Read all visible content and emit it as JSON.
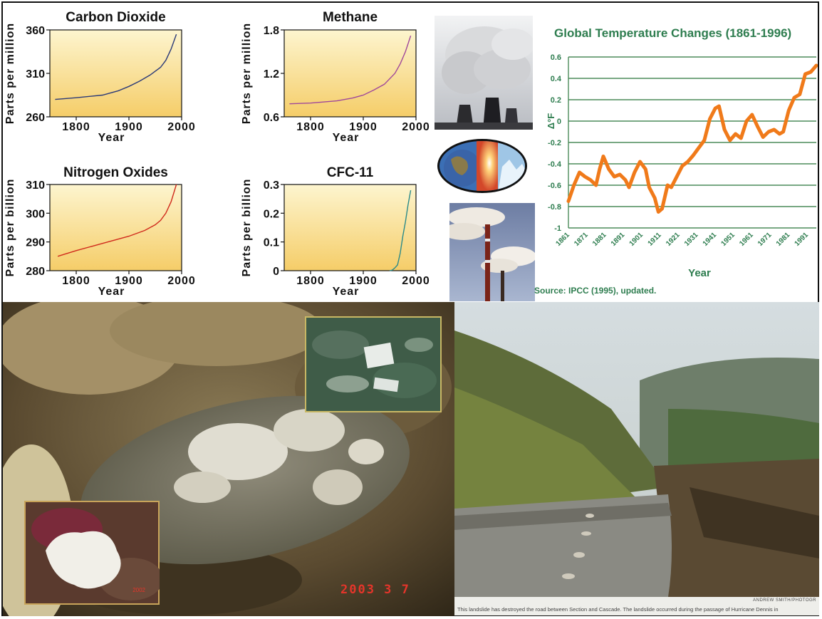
{
  "chart_data": [
    {
      "type": "line",
      "title": "Carbon Dioxide",
      "xlabel": "Year",
      "ylabel": "Parts per million",
      "xlim": [
        1750,
        2000
      ],
      "ylim": [
        260,
        360
      ],
      "xticks": [
        "1800",
        "1900",
        "2000"
      ],
      "yticks": [
        "260",
        "310",
        "360"
      ],
      "x": [
        1760,
        1800,
        1850,
        1880,
        1900,
        1920,
        1940,
        1960,
        1970,
        1980,
        1990
      ],
      "y": [
        280,
        282,
        285,
        290,
        295,
        301,
        308,
        317,
        325,
        338,
        355
      ],
      "line_color": "#2b3a78"
    },
    {
      "type": "line",
      "title": "Methane",
      "xlabel": "Year",
      "ylabel": "Parts per million",
      "xlim": [
        1750,
        2000
      ],
      "ylim": [
        0.6,
        1.8
      ],
      "xticks": [
        "1800",
        "1900",
        "2000"
      ],
      "yticks": [
        "0.6",
        "1.2",
        "1.8"
      ],
      "x": [
        1760,
        1800,
        1850,
        1880,
        1900,
        1920,
        1940,
        1960,
        1970,
        1980,
        1990
      ],
      "y": [
        0.78,
        0.79,
        0.82,
        0.86,
        0.9,
        0.97,
        1.05,
        1.2,
        1.33,
        1.5,
        1.72
      ],
      "line_color": "#a0489a"
    },
    {
      "type": "line",
      "title": "Nitrogen Oxides",
      "xlabel": "Year",
      "ylabel": "Parts per billion",
      "xlim": [
        1750,
        2000
      ],
      "ylim": [
        280,
        310
      ],
      "xticks": [
        "1800",
        "1900",
        "2000"
      ],
      "yticks": [
        "280",
        "290",
        "300",
        "310"
      ],
      "x": [
        1765,
        1800,
        1850,
        1900,
        1930,
        1950,
        1960,
        1970,
        1980,
        1990
      ],
      "y": [
        285,
        287,
        289.5,
        292,
        294,
        296,
        297.5,
        300,
        304,
        310
      ],
      "line_color": "#d02a1c"
    },
    {
      "type": "line",
      "title": "CFC-11",
      "xlabel": "Year",
      "ylabel": "Parts per billion",
      "xlim": [
        1750,
        2000
      ],
      "ylim": [
        0,
        0.3
      ],
      "xticks": [
        "1800",
        "1900",
        "2000"
      ],
      "yticks": [
        "0",
        "0.1",
        "0.2",
        "0.3"
      ],
      "x": [
        1950,
        1955,
        1960,
        1965,
        1970,
        1975,
        1980,
        1985,
        1990
      ],
      "y": [
        0,
        0.002,
        0.01,
        0.02,
        0.06,
        0.12,
        0.17,
        0.23,
        0.28
      ],
      "line_color": "#2a8a8a"
    },
    {
      "type": "line",
      "title": "Global Temperature Changes (1861-1996)",
      "xlabel": "Year",
      "ylabel": "Δ°F",
      "source": "Source: IPCC (1995), updated.",
      "xlim": [
        1861,
        1996
      ],
      "ylim": [
        -1,
        0.6
      ],
      "yticks": [
        "0.6",
        "0.4",
        "0.2",
        "0",
        "-0.2",
        "-0.4",
        "-0.6",
        "-0.8",
        "-1"
      ],
      "xticks": [
        "1861",
        "1871",
        "1881",
        "1891",
        "1901",
        "1911",
        "1921",
        "1931",
        "1941",
        "1951",
        "1961",
        "1971",
        "1981",
        "1991"
      ],
      "grid": true,
      "line_color": "#f07a1a",
      "x": [
        1861,
        1864,
        1867,
        1870,
        1873,
        1876,
        1878,
        1880,
        1883,
        1886,
        1889,
        1892,
        1894,
        1897,
        1900,
        1903,
        1905,
        1908,
        1910,
        1912,
        1915,
        1917,
        1920,
        1923,
        1926,
        1929,
        1932,
        1935,
        1938,
        1941,
        1943,
        1946,
        1949,
        1952,
        1955,
        1958,
        1961,
        1964,
        1967,
        1970,
        1973,
        1976,
        1978,
        1981,
        1984,
        1987,
        1990,
        1993,
        1996
      ],
      "y": [
        -0.75,
        -0.6,
        -0.48,
        -0.52,
        -0.55,
        -0.6,
        -0.45,
        -0.33,
        -0.45,
        -0.52,
        -0.5,
        -0.55,
        -0.62,
        -0.48,
        -0.38,
        -0.45,
        -0.62,
        -0.72,
        -0.85,
        -0.82,
        -0.6,
        -0.62,
        -0.52,
        -0.42,
        -0.38,
        -0.32,
        -0.25,
        -0.18,
        0.02,
        0.12,
        0.14,
        -0.08,
        -0.18,
        -0.12,
        -0.16,
        0.0,
        0.06,
        -0.05,
        -0.15,
        -0.1,
        -0.08,
        -0.12,
        -0.1,
        0.1,
        0.22,
        0.25,
        0.44,
        0.46,
        0.52
      ]
    }
  ],
  "photos": {
    "caption": "This landslide has destroyed the road between Section and Cascade. The landslide occurred during the passage of Hurricane Dennis in",
    "credit": "ANDREW SMITH/PHOTOGR",
    "date_stamp": "2003  3  7",
    "inset_stamp": "2002"
  }
}
